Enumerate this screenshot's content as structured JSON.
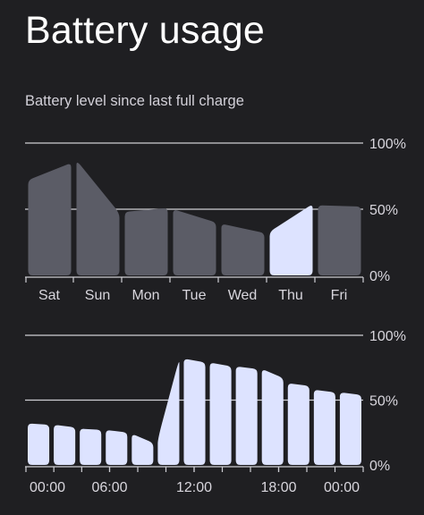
{
  "page": {
    "title": "Battery usage",
    "subtitle": "Battery level since last full charge"
  },
  "colors": {
    "background": "#1f1f22",
    "past_bar": "#5b5c66",
    "current_bar": "#dde3ff",
    "grid": "#cfcfd4"
  },
  "chart_data": [
    {
      "type": "area",
      "title": "",
      "y_tick_labels": [
        "100%",
        "50%",
        "0%"
      ],
      "ylim": [
        0,
        100
      ],
      "categories": [
        "Sat",
        "Sun",
        "Mon",
        "Tue",
        "Wed",
        "Thu",
        "Fri"
      ],
      "current_category": "Thu",
      "series": [
        {
          "values_start_end": [
            [
              72,
              85
            ],
            [
              87,
              47
            ],
            [
              48,
              51
            ],
            [
              50,
              40
            ],
            [
              39,
              32
            ],
            [
              33,
              54
            ],
            [
              53,
              52
            ]
          ]
        }
      ]
    },
    {
      "type": "bar",
      "title": "",
      "y_tick_labels": [
        "100%",
        "50%",
        "0%"
      ],
      "ylim": [
        0,
        100
      ],
      "x_tick_labels": [
        "00:00",
        "06:00",
        "12:00",
        "18:00",
        "00:00"
      ],
      "series": [
        {
          "values_start_end": [
            [
              32,
              31
            ],
            [
              31,
              29
            ],
            [
              28,
              27
            ],
            [
              27,
              25
            ],
            [
              24,
              17
            ],
            [
              20,
              82
            ],
            [
              82,
              79
            ],
            [
              79,
              76
            ],
            [
              76,
              74
            ],
            [
              74,
              67
            ],
            [
              63,
              61
            ],
            [
              58,
              56
            ],
            [
              56,
              54
            ]
          ]
        }
      ]
    }
  ]
}
